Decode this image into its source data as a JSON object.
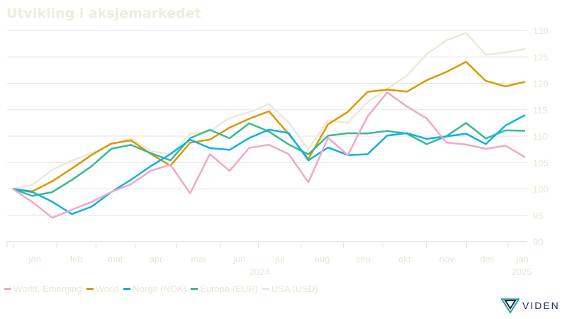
{
  "chart_data": {
    "type": "line",
    "title": "Utvikling i aksjemarkedet",
    "ylim": [
      90,
      130
    ],
    "yticks": [
      90,
      95,
      100,
      105,
      110,
      115,
      120,
      125,
      130
    ],
    "month_labels": [
      "jan",
      "feb",
      "mar",
      "apr",
      "mai",
      "jun",
      "jul",
      "aug",
      "sep",
      "okt",
      "nov",
      "des",
      "jan"
    ],
    "year_labels": [
      "2024",
      "2025"
    ],
    "x_period": "2024-01 to 2024-12 (biweekly)",
    "series": [
      {
        "name": "World, Emerging",
        "color": "#f4a6c8",
        "values": [
          100,
          97,
          94,
          96,
          98,
          100,
          101,
          103,
          104,
          99,
          107,
          104,
          108,
          108,
          106,
          101,
          110,
          107,
          114,
          118,
          115,
          113,
          109,
          109,
          108,
          108,
          106
        ]
      },
      {
        "name": "World",
        "color": "#d99a00",
        "values": [
          100,
          100,
          102,
          104,
          106,
          108,
          109,
          107,
          105,
          109,
          109,
          111,
          113,
          115,
          111,
          106,
          112,
          114,
          118,
          119,
          119,
          121,
          122,
          123.5,
          120,
          119.5,
          120.3
        ]
      },
      {
        "name": "Norge (NOK)",
        "color": "#0fb0e8",
        "values": [
          100,
          99,
          97,
          95,
          97,
          100,
          102,
          104,
          106,
          109,
          108,
          108,
          110,
          111,
          110,
          105,
          108,
          107,
          107,
          110,
          110,
          109,
          110,
          111,
          109,
          112,
          114
        ]
      },
      {
        "name": "Europa (EUR)",
        "color": "#3bb896",
        "values": [
          100,
          99,
          100,
          102,
          104,
          107,
          108,
          107,
          106,
          110,
          111,
          109,
          112,
          111,
          109,
          107,
          110,
          110,
          110,
          111,
          111,
          109,
          110,
          112,
          109,
          111,
          111
        ]
      },
      {
        "name": "USA (USD)",
        "color": "#ece8dc",
        "values": [
          100,
          100.5,
          103,
          105,
          107,
          109,
          110,
          107,
          106,
          110,
          111,
          114,
          115,
          116,
          112,
          107,
          113,
          113,
          117,
          119,
          121,
          125,
          128,
          130,
          126,
          126,
          126.5
        ]
      }
    ]
  },
  "brand": "VIDEN"
}
